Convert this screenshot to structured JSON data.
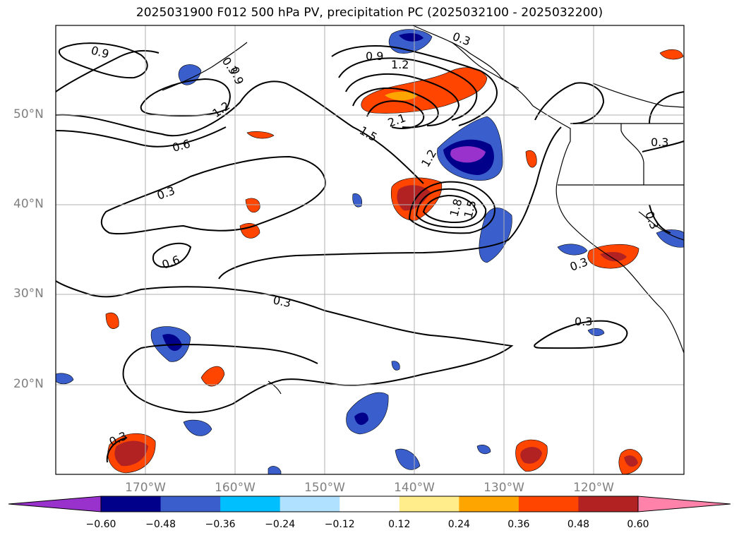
{
  "title": "2025031900 F012 500 hPa PV, precipitation PC (2025032100 - 2025032200)",
  "lat_labels": [
    "50°N",
    "40°N",
    "30°N",
    "20°N"
  ],
  "lon_labels": [
    "170°W",
    "160°W",
    "150°W",
    "140°W",
    "130°W",
    "120°W"
  ],
  "contour_labels": [
    "0.9",
    "0.3",
    "0.9",
    "1.2",
    "1.2",
    "0.6",
    "0.3",
    "0.6",
    "0.3",
    "0.9",
    "1.2",
    "2.1",
    "1.5",
    "1.8",
    "1.5",
    "0.3",
    "0.3",
    "0.3",
    "0.3",
    "0.3",
    "0.3"
  ],
  "colorbar": {
    "ticks": [
      "−0.60",
      "−0.48",
      "−0.36",
      "−0.24",
      "−0.12",
      "0.12",
      "0.24",
      "0.36",
      "0.48",
      "0.60"
    ],
    "colors": [
      "#9932cc",
      "#00008b",
      "#3a5fcd",
      "#00bfff",
      "#b0e2ff",
      "#ffffff",
      "#ffec8b",
      "#ffa500",
      "#ff4500",
      "#b22222",
      "#ff82ab"
    ]
  }
}
